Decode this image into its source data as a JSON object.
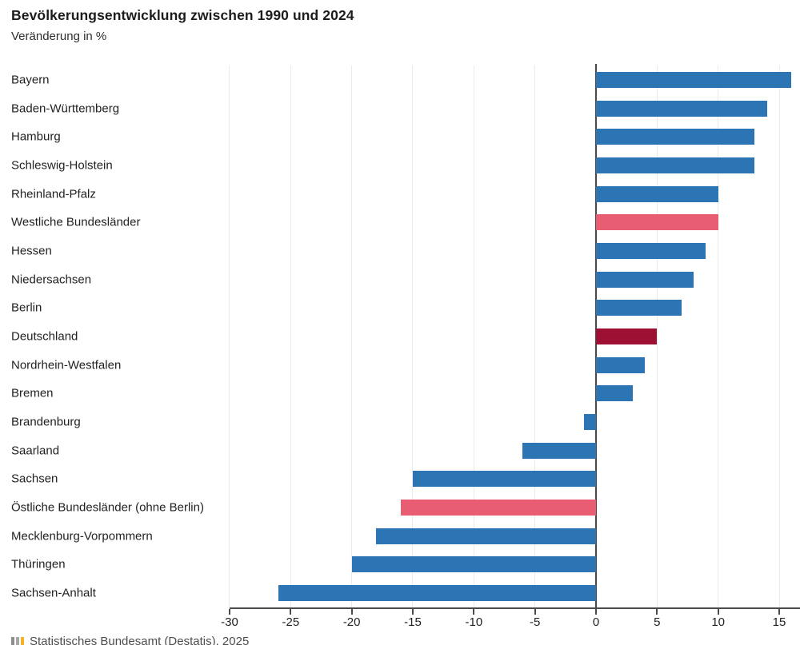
{
  "chart_data": {
    "type": "bar",
    "orientation": "horizontal",
    "title": "Bevölkerungsentwicklung zwischen 1990 und 2024",
    "subtitle": "Veränderung in %",
    "categories": [
      "Bayern",
      "Baden-Württemberg",
      "Hamburg",
      "Schleswig-Holstein",
      "Rheinland-Pfalz",
      "Westliche Bundesländer",
      "Hessen",
      "Niedersachsen",
      "Berlin",
      "Deutschland",
      "Nordrhein-Westfalen",
      "Bremen",
      "Brandenburg",
      "Saarland",
      "Sachsen",
      "Östliche Bundesländer (ohne Berlin)",
      "Mecklenburg-Vorpommern",
      "Thüringen",
      "Sachsen-Anhalt"
    ],
    "values": [
      16,
      14,
      13,
      13,
      10,
      10,
      9,
      8,
      7,
      5,
      4,
      3,
      -1,
      -6,
      -15,
      -16,
      -18,
      -20,
      -26
    ],
    "bar_roles": [
      "state",
      "state",
      "state",
      "state",
      "state",
      "region",
      "state",
      "state",
      "state",
      "country",
      "state",
      "state",
      "state",
      "state",
      "state",
      "region",
      "state",
      "state",
      "state"
    ],
    "color_map": {
      "state": "#2d74b5",
      "region": "#e85d72",
      "country": "#9e0f34"
    },
    "xticks": [
      -30,
      -25,
      -20,
      -15,
      -10,
      -5,
      0,
      5,
      10,
      15
    ],
    "xlim": [
      -30,
      16.7
    ],
    "grid": true,
    "legend": "none",
    "source": "Statistisches Bundesamt (Destatis), 2025"
  },
  "footer": {
    "logo_icon": "destatis-logo"
  }
}
